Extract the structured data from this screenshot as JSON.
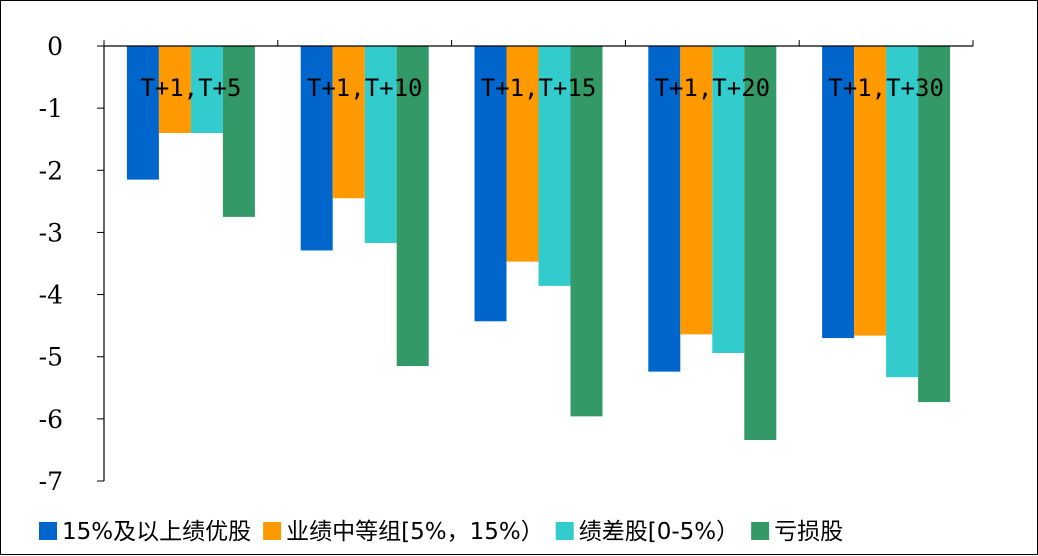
{
  "chart_data": {
    "type": "bar",
    "title": "",
    "xlabel": "",
    "ylabel": "",
    "ylim": [
      -7,
      0
    ],
    "yticks": [
      0,
      -1,
      -2,
      -3,
      -4,
      -5,
      -6,
      -7
    ],
    "ytick_labels": [
      "0",
      "-1",
      "-2",
      "-3",
      "-4",
      "-5",
      "-6",
      "-7"
    ],
    "grid": false,
    "legend_position": "bottom",
    "categories": [
      "T+1,T+5",
      "T+1,T+10",
      "T+1,T+15",
      "T+1,T+20",
      "T+1,T+30"
    ],
    "series": [
      {
        "name": "15%及以上绩优股",
        "color": "#0066CC",
        "values": [
          -2.15,
          -3.29,
          -4.43,
          -5.24,
          -4.7
        ]
      },
      {
        "name": "业绩中等组[5%，15%）",
        "color": "#FF9900",
        "values": [
          -1.4,
          -2.45,
          -3.47,
          -4.64,
          -4.66
        ]
      },
      {
        "name": "绩差股[0-5%）",
        "color": "#33CCCC",
        "values": [
          -1.4,
          -3.17,
          -3.86,
          -4.94,
          -5.33
        ]
      },
      {
        "name": "亏损股",
        "color": "#339966",
        "values": [
          -2.75,
          -5.15,
          -5.96,
          -6.34,
          -5.73
        ]
      }
    ]
  }
}
